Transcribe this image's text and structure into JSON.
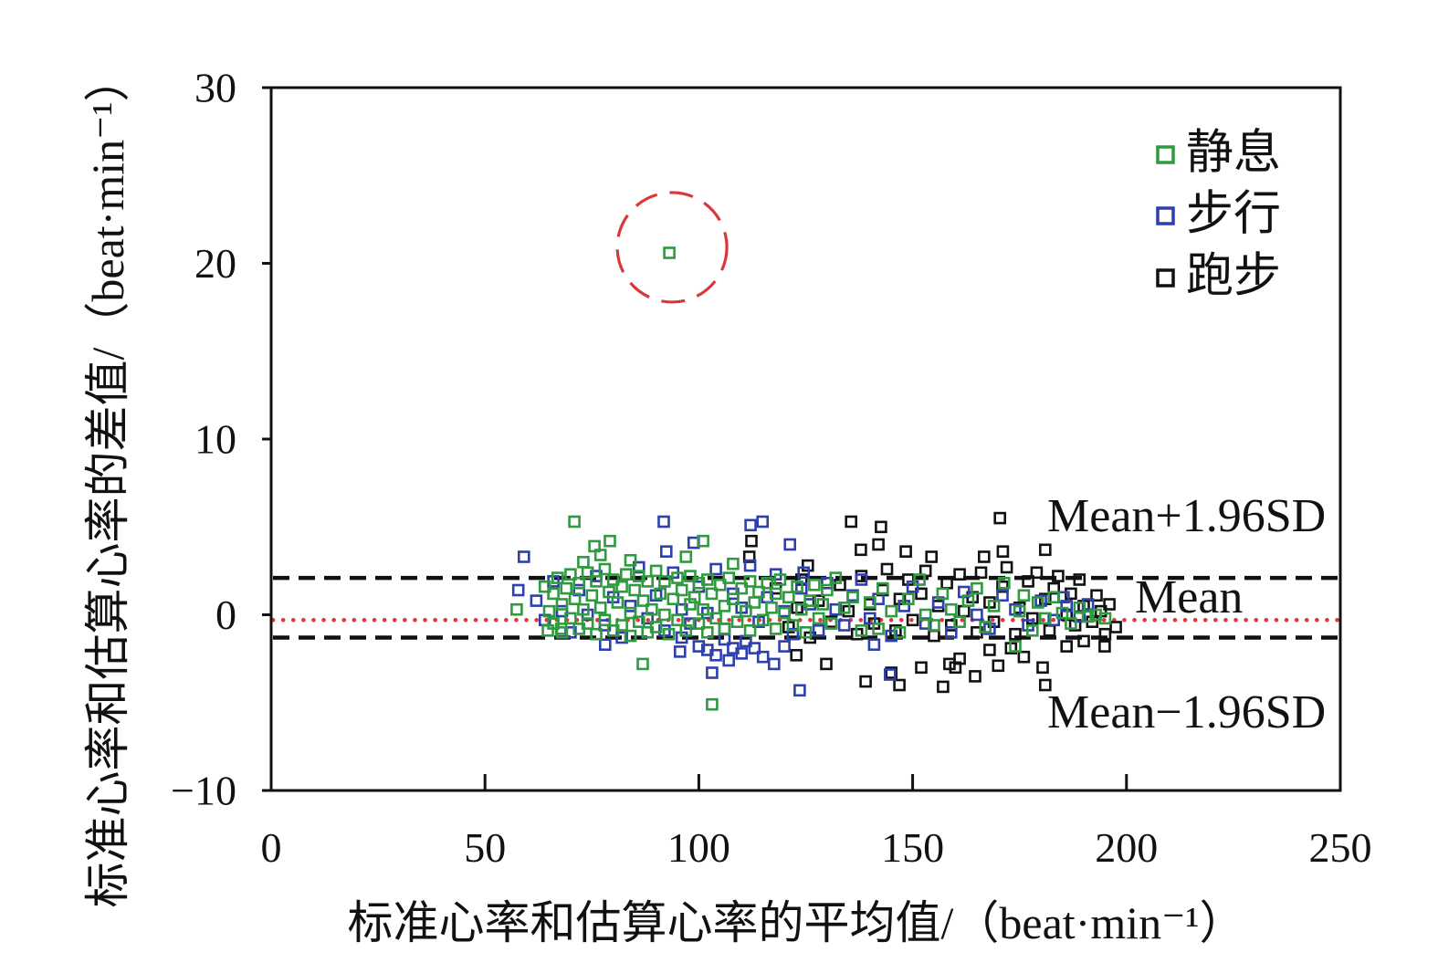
{
  "chart_data": {
    "type": "scatter",
    "xlabel": "标准心率和估算心率的平均值/（beat·min⁻¹）",
    "ylabel": "标准心率和估算心率的差值/（beat·min⁻¹）",
    "xlim": [
      0,
      250
    ],
    "ylim": [
      -10,
      30
    ],
    "xticks": [
      0,
      50,
      100,
      150,
      200,
      250
    ],
    "xtick_labels": [
      "0",
      "50",
      "100",
      "150",
      "200",
      "250"
    ],
    "yticks": [
      30,
      20,
      10,
      0,
      -10
    ],
    "ytick_labels": [
      "30",
      "20",
      "10",
      "0",
      "−10"
    ],
    "grid": false,
    "legend_position": "top-right",
    "series": [
      {
        "name": "静息",
        "color": "#2f9a3f",
        "marker": "open-square",
        "points": [
          [
            93.1,
            20.6
          ],
          [
            70.9,
            5.3
          ],
          [
            79.2,
            4.2
          ],
          [
            75.6,
            3.9
          ],
          [
            101.0,
            4.2
          ],
          [
            57.4,
            0.3
          ],
          [
            86.9,
            -2.8
          ],
          [
            103.1,
            -5.1
          ],
          [
            64.7,
            -0.9
          ],
          [
            67.8,
            -0.8
          ],
          [
            73,
            3.0
          ],
          [
            77,
            3.4
          ],
          [
            84,
            3.1
          ],
          [
            97,
            3.3
          ],
          [
            108,
            2.9
          ],
          [
            64,
            1.6
          ],
          [
            65,
            0.2
          ],
          [
            66,
            1.2
          ],
          [
            66,
            -0.5
          ],
          [
            67,
            2.1
          ],
          [
            68,
            0.6
          ],
          [
            68,
            -1.0
          ],
          [
            69,
            1.5
          ],
          [
            70,
            2.3
          ],
          [
            70,
            -0.2
          ],
          [
            71,
            0.9
          ],
          [
            72,
            -0.8
          ],
          [
            72,
            1.8
          ],
          [
            73,
            0.3
          ],
          [
            74,
            2.4
          ],
          [
            74,
            -0.5
          ],
          [
            75,
            1.1
          ],
          [
            76,
            -1.1
          ],
          [
            76,
            1.9
          ],
          [
            77,
            0.4
          ],
          [
            78,
            2.6
          ],
          [
            78,
            -0.3
          ],
          [
            79,
            1.3
          ],
          [
            80,
            -0.9
          ],
          [
            80,
            2.0
          ],
          [
            81,
            0.7
          ],
          [
            82,
            1.6
          ],
          [
            82,
            -0.6
          ],
          [
            83,
            2.3
          ],
          [
            84,
            0.1
          ],
          [
            84,
            -1.2
          ],
          [
            85,
            1.4
          ],
          [
            86,
            2.2
          ],
          [
            86,
            -0.4
          ],
          [
            87,
            0.8
          ],
          [
            88,
            1.9
          ],
          [
            88,
            -1.0
          ],
          [
            89,
            0.3
          ],
          [
            90,
            2.5
          ],
          [
            90,
            -0.7
          ],
          [
            91,
            1.2
          ],
          [
            92,
            0.0
          ],
          [
            92,
            1.9
          ],
          [
            93,
            -1.1
          ],
          [
            94,
            0.9
          ],
          [
            95,
            2.1
          ],
          [
            95,
            -0.3
          ],
          [
            96,
            1.4
          ],
          [
            97,
            -0.9
          ],
          [
            98,
            0.6
          ],
          [
            98,
            2.2
          ],
          [
            99,
            1.0
          ],
          [
            100,
            -0.5
          ],
          [
            100,
            1.8
          ],
          [
            101,
            0.3
          ],
          [
            102,
            2.0
          ],
          [
            102,
            -1.0
          ],
          [
            103,
            1.2
          ],
          [
            104,
            -0.2
          ],
          [
            105,
            1.7
          ],
          [
            106,
            0.5
          ],
          [
            106,
            -0.8
          ],
          [
            107,
            2.1
          ],
          [
            108,
            0.9
          ],
          [
            109,
            -0.4
          ],
          [
            110,
            1.5
          ],
          [
            111,
            0.2
          ],
          [
            112,
            1.9
          ],
          [
            112,
            -0.9
          ],
          [
            113,
            0.7
          ],
          [
            114,
            1.3
          ],
          [
            115,
            -0.3
          ],
          [
            116,
            1.8
          ],
          [
            117,
            0.4
          ],
          [
            118,
            -0.8
          ],
          [
            118,
            1.2
          ],
          [
            119,
            2.0
          ],
          [
            120,
            0.1
          ],
          [
            121,
            1.0
          ],
          [
            122,
            -0.6
          ],
          [
            123,
            1.6
          ],
          [
            124,
            0.3
          ],
          [
            125,
            -1.0
          ],
          [
            126,
            0.8
          ],
          [
            127,
            1.7
          ],
          [
            128,
            -0.2
          ],
          [
            129,
            0.6
          ],
          [
            130,
            1.4
          ],
          [
            131,
            -0.5
          ],
          [
            132,
            2.1
          ],
          [
            134,
            0.4
          ],
          [
            136,
            1.0
          ],
          [
            138,
            -0.9
          ],
          [
            140,
            0.7
          ],
          [
            142,
            -0.8
          ],
          [
            143,
            1.5
          ],
          [
            145,
            0.2
          ],
          [
            147,
            -1.0
          ],
          [
            149,
            0.9
          ],
          [
            151.6,
            2.0
          ],
          [
            153,
            0.0
          ],
          [
            155,
            -0.6
          ],
          [
            157,
            1.2
          ],
          [
            159,
            0.3
          ],
          [
            161,
            -0.4
          ],
          [
            163,
            0.8
          ],
          [
            165,
            1.5
          ],
          [
            167,
            -0.7
          ],
          [
            169,
            0.5
          ],
          [
            171.4,
            1.8
          ],
          [
            174,
            -1.8
          ],
          [
            175,
            0.2
          ],
          [
            176,
            1.1
          ],
          [
            178,
            -0.9
          ],
          [
            179.3,
            0.7
          ],
          [
            181,
            -0.2
          ],
          [
            183,
            1.0
          ],
          [
            185,
            0.1
          ],
          [
            187,
            -0.5
          ],
          [
            189,
            0.4
          ],
          [
            191,
            -0.1
          ],
          [
            192.8,
            0.0
          ],
          [
            195,
            -0.2
          ]
        ]
      },
      {
        "name": "步行",
        "color": "#2e3fae",
        "marker": "open-square",
        "points": [
          [
            59.1,
            3.3
          ],
          [
            57.8,
            1.4
          ],
          [
            91.8,
            5.3
          ],
          [
            114.9,
            5.3
          ],
          [
            112.1,
            5.1
          ],
          [
            121.3,
            4.0
          ],
          [
            92.4,
            3.6
          ],
          [
            98.8,
            4.1
          ],
          [
            78.1,
            -1.7
          ],
          [
            95.6,
            -2.1
          ],
          [
            103.1,
            -3.3
          ],
          [
            117.6,
            -2.8
          ],
          [
            123.6,
            -4.3
          ],
          [
            144.7,
            -3.4
          ],
          [
            124.5,
            2.4
          ],
          [
            185.3,
            1.0
          ],
          [
            141,
            -1.7
          ],
          [
            104,
            -2.3
          ],
          [
            107,
            -2.6
          ],
          [
            110,
            -2.2
          ],
          [
            100,
            -1.8
          ],
          [
            113,
            -1.9
          ],
          [
            106,
            -1.4
          ],
          [
            102,
            -2.0
          ],
          [
            111,
            -1.5
          ],
          [
            115,
            -2.4
          ],
          [
            120,
            -1.8
          ],
          [
            96,
            -1.3
          ],
          [
            108,
            -1.9
          ],
          [
            62,
            0.8
          ],
          [
            64,
            -0.3
          ],
          [
            66,
            1.9
          ],
          [
            68,
            0.2
          ],
          [
            70,
            -1.0
          ],
          [
            72,
            1.4
          ],
          [
            74,
            0.0
          ],
          [
            76,
            2.2
          ],
          [
            78,
            -0.6
          ],
          [
            80,
            1.0
          ],
          [
            82,
            -1.3
          ],
          [
            84,
            0.5
          ],
          [
            86,
            2.7
          ],
          [
            88,
            -0.2
          ],
          [
            90,
            1.1
          ],
          [
            92,
            -0.9
          ],
          [
            94,
            2.4
          ],
          [
            96,
            0.3
          ],
          [
            98,
            -0.5
          ],
          [
            100,
            1.6
          ],
          [
            102,
            0.1
          ],
          [
            104,
            2.6
          ],
          [
            106,
            -0.8
          ],
          [
            108,
            1.2
          ],
          [
            110,
            0.4
          ],
          [
            112,
            2.8
          ],
          [
            114,
            -0.4
          ],
          [
            116,
            1.0
          ],
          [
            118,
            2.3
          ],
          [
            120,
            0.2
          ],
          [
            122,
            -1.1
          ],
          [
            124,
            1.5
          ],
          [
            126,
            0.6
          ],
          [
            128,
            -0.9
          ],
          [
            130,
            1.8
          ],
          [
            132,
            0.3
          ],
          [
            134,
            -0.6
          ],
          [
            136,
            1.1
          ],
          [
            138,
            2.0
          ],
          [
            140,
            -0.2
          ],
          [
            142,
            0.9
          ],
          [
            145,
            -1.2
          ],
          [
            148,
            0.5
          ],
          [
            150,
            1.6
          ],
          [
            153,
            -0.5
          ],
          [
            156,
            0.7
          ],
          [
            159,
            -1.0
          ],
          [
            162,
            1.3
          ],
          [
            165,
            0.0
          ],
          [
            168,
            -0.8
          ],
          [
            171,
            1.1
          ],
          [
            174,
            0.3
          ],
          [
            177,
            -0.6
          ],
          [
            180,
            0.8
          ],
          [
            183,
            -0.3
          ],
          [
            186,
            0.5
          ],
          [
            189,
            -0.1
          ],
          [
            191,
            0.6
          ]
        ]
      },
      {
        "name": "跑步",
        "color": "#111111",
        "marker": "open-square",
        "points": [
          [
            170.4,
            5.5
          ],
          [
            135.6,
            5.3
          ],
          [
            142.6,
            5.0
          ],
          [
            142,
            4.0
          ],
          [
            137.9,
            3.7
          ],
          [
            148.4,
            3.6
          ],
          [
            154.4,
            3.3
          ],
          [
            181,
            3.7
          ],
          [
            171.1,
            3.6
          ],
          [
            166.7,
            3.3
          ],
          [
            112.3,
            4.2
          ],
          [
            111.8,
            3.3
          ],
          [
            129.8,
            -2.8
          ],
          [
            139,
            -3.8
          ],
          [
            146.9,
            -4.0
          ],
          [
            157.1,
            -4.1
          ],
          [
            164.6,
            -3.5
          ],
          [
            180.4,
            -3.0
          ],
          [
            181,
            -4.0
          ],
          [
            194.9,
            -1.8
          ],
          [
            197.5,
            -0.7
          ],
          [
            158.6,
            -2.8
          ],
          [
            152,
            -3.0
          ],
          [
            161,
            -2.5
          ],
          [
            170,
            -2.9
          ],
          [
            176,
            -2.4
          ],
          [
            145,
            -3.3
          ],
          [
            160,
            -3.0
          ],
          [
            168,
            -2.0
          ],
          [
            173,
            -1.9
          ],
          [
            186,
            -1.8
          ],
          [
            190,
            -1.5
          ],
          [
            122.8,
            -2.3
          ],
          [
            125.5,
            2.8
          ],
          [
            118,
            1.5
          ],
          [
            121,
            -0.7
          ],
          [
            124,
            2.0
          ],
          [
            126,
            -1.3
          ],
          [
            123,
            0.4
          ],
          [
            128,
            0.8
          ],
          [
            131,
            -0.4
          ],
          [
            133,
            1.7
          ],
          [
            135,
            0.2
          ],
          [
            137,
            -1.1
          ],
          [
            138,
            2.2
          ],
          [
            140,
            0.6
          ],
          [
            141,
            -0.5
          ],
          [
            143,
            1.4
          ],
          [
            144,
            2.6
          ],
          [
            146,
            -0.9
          ],
          [
            147,
            0.9
          ],
          [
            149,
            2.0
          ],
          [
            150,
            -0.3
          ],
          [
            152,
            1.2
          ],
          [
            153,
            2.5
          ],
          [
            155,
            -1.2
          ],
          [
            156,
            0.5
          ],
          [
            158,
            1.8
          ],
          [
            159,
            -0.6
          ],
          [
            161,
            2.3
          ],
          [
            162,
            0.2
          ],
          [
            164,
            1.0
          ],
          [
            165,
            -1.0
          ],
          [
            166,
            2.4
          ],
          [
            168,
            0.7
          ],
          [
            169,
            -0.4
          ],
          [
            171,
            1.6
          ],
          [
            172,
            2.7
          ],
          [
            174,
            -1.1
          ],
          [
            175,
            0.4
          ],
          [
            177,
            1.9
          ],
          [
            178,
            -0.2
          ],
          [
            179,
            2.4
          ],
          [
            181,
            0.9
          ],
          [
            182,
            -0.9
          ],
          [
            183,
            1.5
          ],
          [
            184,
            2.2
          ],
          [
            186,
            0.0
          ],
          [
            187,
            1.2
          ],
          [
            188,
            -0.6
          ],
          [
            189,
            2.0
          ],
          [
            190,
            0.5
          ],
          [
            192,
            -0.4
          ],
          [
            193,
            1.1
          ],
          [
            194,
            0.2
          ],
          [
            195,
            -1.1
          ],
          [
            196,
            0.6
          ]
        ]
      }
    ],
    "reference_lines": [
      {
        "label": "Mean+1.96SD",
        "y": 2.1,
        "style": "dashed",
        "color": "#111111"
      },
      {
        "label": "Mean",
        "y": -0.3,
        "style": "dotted",
        "color": "#e0363c"
      },
      {
        "label": "Mean−1.96SD",
        "y": -1.3,
        "style": "dashed",
        "color": "#111111"
      }
    ],
    "highlight": {
      "x": 93.1,
      "y": 20.6,
      "shape": "dashed-circle",
      "color": "#d9383a"
    }
  }
}
